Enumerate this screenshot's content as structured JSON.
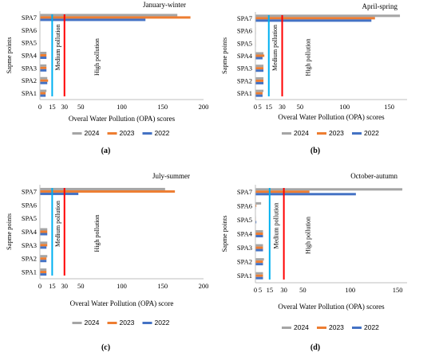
{
  "series_styles": [
    {
      "name": "2024",
      "color": "#a5a5a5"
    },
    {
      "name": "2023",
      "color": "#ed7d31"
    },
    {
      "name": "2022",
      "color": "#4472c4"
    }
  ],
  "threshold_colors": {
    "medium": "#00b0f0",
    "high": "#ff0000"
  },
  "chart_data": [
    {
      "type": "bar",
      "orientation": "horizontal",
      "title": "January-winter",
      "panel_label": "(a)",
      "xlabel": "Overal Water Pollution (OPA) scores",
      "ylabel": "Sapme points",
      "categories": [
        "SPA1",
        "SPA2",
        "SPA3",
        "SPA4",
        "SPA5",
        "SPA6",
        "SPA7"
      ],
      "xlim": [
        0,
        200
      ],
      "xticks": [
        0,
        15,
        30,
        50,
        100,
        150,
        200
      ],
      "series": [
        {
          "name": "2024",
          "values": [
            8,
            9,
            8,
            8,
            0.5,
            0.5,
            168
          ]
        },
        {
          "name": "2023",
          "values": [
            7,
            10,
            8,
            8,
            0.5,
            0.5,
            184
          ]
        },
        {
          "name": "2022",
          "values": [
            7,
            9,
            8,
            8,
            0.5,
            0.5,
            129
          ]
        }
      ],
      "thresholds": [
        {
          "x": 15,
          "label": "Medium pollution"
        },
        {
          "x": 30,
          "label": ""
        }
      ],
      "zone_label": "High pollution"
    },
    {
      "type": "bar",
      "orientation": "horizontal",
      "title": "April-spring",
      "panel_label": "(b)",
      "xlabel": "Overal Water Pollution (OPA) scores",
      "ylabel": "Sapme points",
      "categories": [
        "SPA1",
        "SPA2",
        "SPA3",
        "SPA4",
        "SPA5",
        "SPA6",
        "SPA7"
      ],
      "xlim": [
        0,
        170
      ],
      "xticks": [
        0,
        5,
        15,
        30,
        50,
        100,
        150
      ],
      "series": [
        {
          "name": "2024",
          "values": [
            9,
            9,
            9,
            9,
            0.5,
            0.5,
            162
          ]
        },
        {
          "name": "2023",
          "values": [
            8,
            9,
            9,
            10,
            0.5,
            0.5,
            134
          ]
        },
        {
          "name": "2022",
          "values": [
            8,
            9,
            9,
            8,
            0.5,
            0.5,
            130
          ]
        }
      ],
      "thresholds": [
        {
          "x": 15,
          "label": "Medium pollution"
        },
        {
          "x": 30,
          "label": ""
        }
      ],
      "zone_label": "High pollution"
    },
    {
      "type": "bar",
      "orientation": "horizontal",
      "title": "July-summer",
      "panel_label": "(c)",
      "xlabel": "Overal Water Pollution (OPA) score",
      "ylabel": "Sapme points",
      "categories": [
        "SPA1",
        "SPA2",
        "SPA3",
        "SPA4",
        "SPA5",
        "SPA6",
        "SPA7"
      ],
      "xlim": [
        0,
        200
      ],
      "xticks": [
        0,
        15,
        30,
        50,
        100,
        150,
        200
      ],
      "series": [
        {
          "name": "2024",
          "values": [
            8,
            9,
            9,
            9,
            0.5,
            0.5,
            153
          ]
        },
        {
          "name": "2023",
          "values": [
            8,
            8,
            9,
            9,
            0.5,
            0.5,
            165
          ]
        },
        {
          "name": "2022",
          "values": [
            8,
            8,
            8,
            9,
            0.5,
            0.5,
            47
          ]
        }
      ],
      "thresholds": [
        {
          "x": 15,
          "label": "Medium pollution"
        },
        {
          "x": 30,
          "label": ""
        }
      ],
      "zone_label": "High pollution"
    },
    {
      "type": "bar",
      "orientation": "horizontal",
      "title": "October-autumn",
      "panel_label": "(d)",
      "xlabel": "Overal Water Pollution (OPA) scores",
      "ylabel": "Sapme points",
      "categories": [
        "SPA1",
        "SPA2",
        "SPA3",
        "SPA4",
        "SPA5",
        "SPA6",
        "SPA7"
      ],
      "xlim": [
        0,
        160
      ],
      "xticks": [
        0,
        5,
        15,
        30,
        50,
        100,
        150
      ],
      "series": [
        {
          "name": "2024",
          "values": [
            8,
            9,
            8,
            8,
            0.5,
            6,
            155
          ]
        },
        {
          "name": "2023",
          "values": [
            8,
            8,
            8,
            8,
            0.5,
            1,
            57
          ]
        },
        {
          "name": "2022",
          "values": [
            8,
            8,
            8,
            8,
            1,
            0.5,
            106
          ]
        }
      ],
      "thresholds": [
        {
          "x": 15,
          "label": "Medium pollution"
        },
        {
          "x": 30,
          "label": ""
        }
      ],
      "zone_label": "High pollution"
    }
  ]
}
